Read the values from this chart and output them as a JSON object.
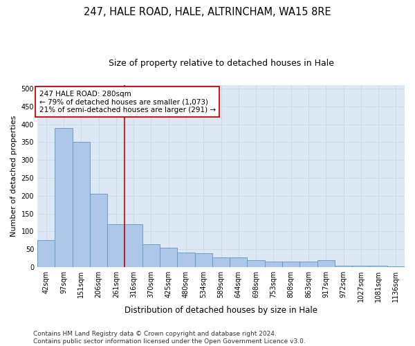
{
  "title1": "247, HALE ROAD, HALE, ALTRINCHAM, WA15 8RE",
  "title2": "Size of property relative to detached houses in Hale",
  "xlabel": "Distribution of detached houses by size in Hale",
  "ylabel": "Number of detached properties",
  "categories": [
    "42sqm",
    "97sqm",
    "151sqm",
    "206sqm",
    "261sqm",
    "316sqm",
    "370sqm",
    "425sqm",
    "480sqm",
    "534sqm",
    "589sqm",
    "644sqm",
    "698sqm",
    "753sqm",
    "808sqm",
    "863sqm",
    "917sqm",
    "972sqm",
    "1027sqm",
    "1081sqm",
    "1136sqm"
  ],
  "values": [
    75,
    390,
    350,
    205,
    120,
    120,
    65,
    55,
    40,
    38,
    28,
    28,
    20,
    15,
    15,
    15,
    20,
    5,
    5,
    5,
    3
  ],
  "bar_color": "#aec6e8",
  "bar_edge_color": "#5a96c8",
  "vline_x": 4.5,
  "vline_color": "#cc0000",
  "annotation_text": "247 HALE ROAD: 280sqm\n← 79% of detached houses are smaller (1,073)\n21% of semi-detached houses are larger (291) →",
  "annotation_box_facecolor": "#ffffff",
  "annotation_box_edgecolor": "#cc0000",
  "ylim": [
    0,
    510
  ],
  "yticks": [
    0,
    50,
    100,
    150,
    200,
    250,
    300,
    350,
    400,
    450,
    500
  ],
  "grid_color": "#c8d8ea",
  "bg_color": "#dce9f5",
  "footer_text": "Contains HM Land Registry data © Crown copyright and database right 2024.\nContains public sector information licensed under the Open Government Licence v3.0.",
  "title1_fontsize": 10.5,
  "title2_fontsize": 9,
  "xlabel_fontsize": 8.5,
  "ylabel_fontsize": 8,
  "tick_fontsize": 7,
  "annotation_fontsize": 7.5,
  "footer_fontsize": 6.5
}
